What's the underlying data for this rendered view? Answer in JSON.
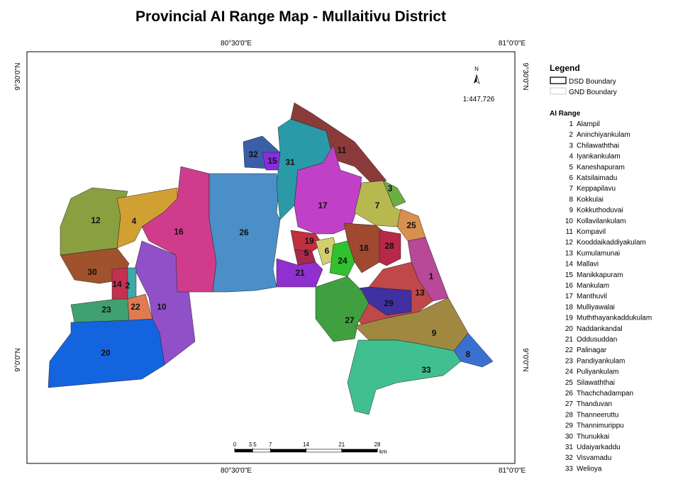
{
  "title": "Provincial AI Range Map - Mullaitivu District",
  "graticule": {
    "longitudes": [
      "80°30'0\"E",
      "81°0'0\"E"
    ],
    "latitudes": [
      "9°30'0\"N",
      "9°0'0\"N"
    ]
  },
  "north_arrow": "N",
  "scale": "1:447,726",
  "scale_bar": {
    "ticks": [
      0,
      3.5,
      7,
      14,
      21,
      28
    ],
    "unit": "km"
  },
  "legend": {
    "title": "Legend",
    "boundaries": [
      "DSD Boundary",
      "GND Boundary"
    ],
    "range_title": "AI Range",
    "ranges": [
      {
        "number": "1",
        "name": "Alampil"
      },
      {
        "number": "2",
        "name": "Aninchiyankulam"
      },
      {
        "number": "3",
        "name": "Chilawaththai"
      },
      {
        "number": "4",
        "name": "Iyankankulam"
      },
      {
        "number": "5",
        "name": "Kaneshapuram"
      },
      {
        "number": "6",
        "name": "Katsilaimadu"
      },
      {
        "number": "7",
        "name": "Keppapilavu"
      },
      {
        "number": "8",
        "name": "Kokkulai"
      },
      {
        "number": "9",
        "name": "Kokkuthoduvai"
      },
      {
        "number": "10",
        "name": "Kollavilankulam"
      },
      {
        "number": "11",
        "name": "Kompavil"
      },
      {
        "number": "12",
        "name": "Kooddaikaddiyakulam"
      },
      {
        "number": "13",
        "name": "Kumulamunai"
      },
      {
        "number": "14",
        "name": "Mallavi"
      },
      {
        "number": "15",
        "name": "Manikkapuram"
      },
      {
        "number": "16",
        "name": "Mankulam"
      },
      {
        "number": "17",
        "name": "Manthuvil"
      },
      {
        "number": "18",
        "name": "Mulliyawalai"
      },
      {
        "number": "19",
        "name": "Muththayankaddukulam"
      },
      {
        "number": "20",
        "name": "Naddankandal"
      },
      {
        "number": "21",
        "name": "Oddusuddan"
      },
      {
        "number": "22",
        "name": "Palinagar"
      },
      {
        "number": "23",
        "name": "Pandiyankulam"
      },
      {
        "number": "24",
        "name": "Puliyankulam"
      },
      {
        "number": "25",
        "name": "Silawaththai"
      },
      {
        "number": "26",
        "name": "Thachchadampan"
      },
      {
        "number": "27",
        "name": "Thanduvan"
      },
      {
        "number": "28",
        "name": "Thanneeruttu"
      },
      {
        "number": "29",
        "name": "Thannimurippu"
      },
      {
        "number": "30",
        "name": "Thunukkai"
      },
      {
        "number": "31",
        "name": "Udaiyarkaddu"
      },
      {
        "number": "32",
        "name": "Visvamadu"
      },
      {
        "number": "33",
        "name": "Welioya"
      }
    ]
  }
}
